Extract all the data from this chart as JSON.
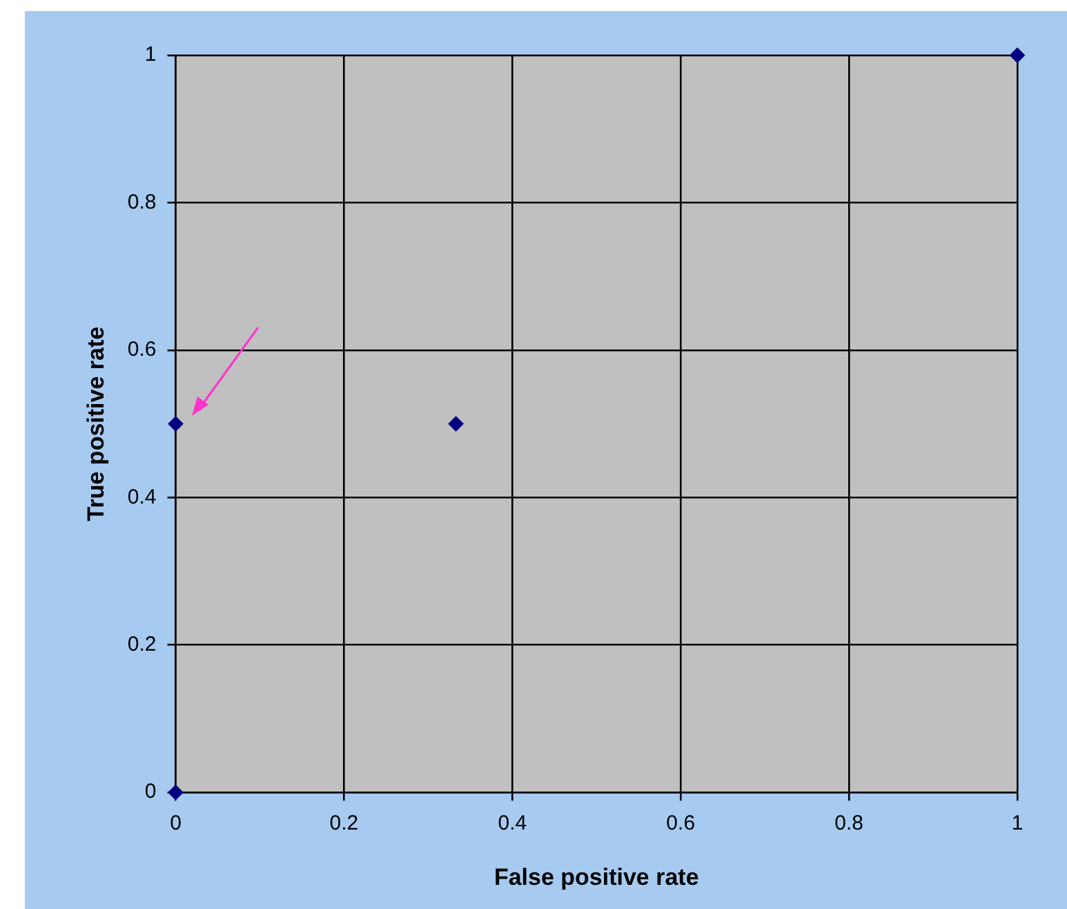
{
  "chart_data": {
    "type": "scatter",
    "xlabel": "False positive rate",
    "ylabel": "True positive rate",
    "x": [
      0,
      0,
      0.333,
      1
    ],
    "series": [
      {
        "color": "#000080",
        "values": [
          0,
          0.5,
          0.5,
          1
        ]
      }
    ],
    "xlim": [
      0,
      1
    ],
    "xticks": [
      0,
      0.2,
      0.4,
      0.6,
      0.8,
      1
    ],
    "ylim": [
      0,
      1
    ],
    "yticks": [
      0,
      0.2,
      0.4,
      0.6,
      0.8,
      1
    ],
    "grid": true,
    "legend": false,
    "marker": "diamond"
  }
}
